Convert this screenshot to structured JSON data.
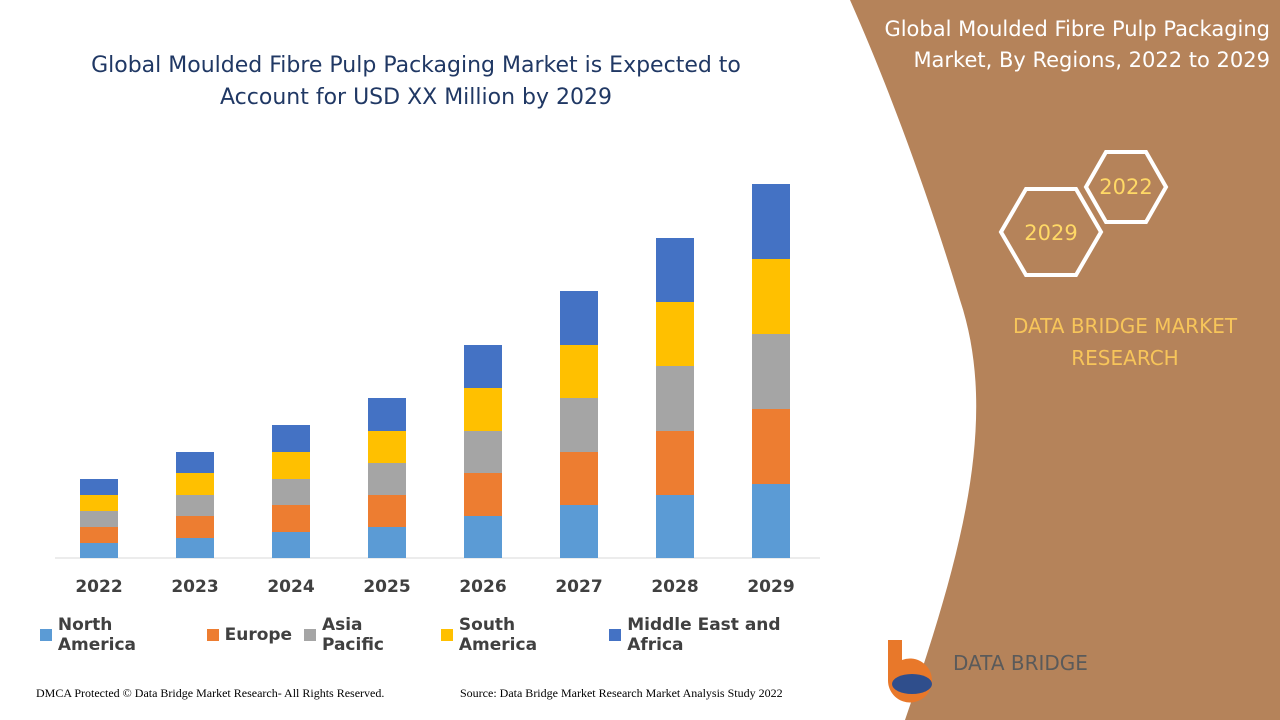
{
  "chart_data": {
    "type": "stacked_bar",
    "title": "Global Moulded Fibre Pulp Packaging Market is Expected to Account for USD XX Million by 2029",
    "categories": [
      "2022",
      "2023",
      "2024",
      "2025",
      "2026",
      "2027",
      "2028",
      "2029"
    ],
    "series": [
      {
        "name": "North America",
        "color": "#5b9bd5",
        "values": [
          15,
          20,
          26,
          31,
          42,
          53,
          63,
          74
        ]
      },
      {
        "name": "Europe",
        "color": "#ed7d31",
        "values": [
          16,
          22,
          27,
          32,
          43,
          53,
          64,
          75
        ]
      },
      {
        "name": "Asia Pacific",
        "color": "#a5a5a5",
        "values": [
          16,
          21,
          26,
          32,
          42,
          54,
          65,
          75
        ]
      },
      {
        "name": "South America",
        "color": "#ffc000",
        "values": [
          16,
          22,
          27,
          32,
          43,
          53,
          64,
          75
        ]
      },
      {
        "name": "Middle East and Africa",
        "color": "#4472c4",
        "values": [
          16,
          21,
          27,
          33,
          43,
          54,
          64,
          75
        ]
      }
    ],
    "legend": "bottom"
  },
  "sidebar": {
    "title": "Global Moulded Fibre Pulp Packaging Market, By Regions, 2022 to 2029",
    "hex_small": "2022",
    "hex_large": "2029",
    "brand": "DATA BRIDGE MARKET RESEARCH"
  },
  "logo": {
    "name": "DATA BRIDGE"
  },
  "footer": {
    "left": "DMCA Protected © Data Bridge Market Research- All Rights Reserved.",
    "right": "Source: Data Bridge Market Research Market Analysis Study 2022"
  }
}
